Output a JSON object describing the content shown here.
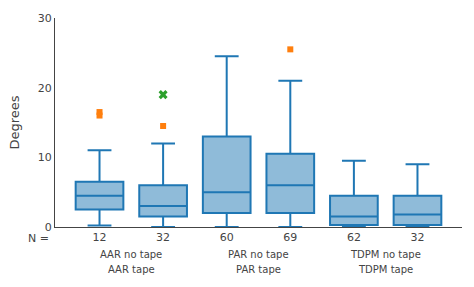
{
  "chart_data": {
    "type": "box",
    "ylabel": "Degrees",
    "ylim": [
      0,
      30
    ],
    "yticks": [
      0,
      10,
      20,
      30
    ],
    "grid": false,
    "categories": [
      "12",
      "32",
      "60",
      "69",
      "62",
      "32"
    ],
    "annotations": [
      {
        "text": "N ="
      }
    ],
    "group_labels": [
      [
        "AAR no tape",
        "AAR tape"
      ],
      [
        "PAR no tape",
        "PAR tape"
      ],
      [
        "TDPM no tape",
        "TDPM tape"
      ]
    ],
    "boxes": [
      {
        "q1": 2.5,
        "median": 4.5,
        "q3": 6.5,
        "whisker_low": 0.2,
        "whisker_high": 11.0
      },
      {
        "q1": 1.5,
        "median": 3.0,
        "q3": 6.0,
        "whisker_low": 0.0,
        "whisker_high": 12.0
      },
      {
        "q1": 2.0,
        "median": 5.0,
        "q3": 13.0,
        "whisker_low": 0.0,
        "whisker_high": 24.5
      },
      {
        "q1": 2.0,
        "median": 6.0,
        "q3": 10.5,
        "whisker_low": 0.0,
        "whisker_high": 21.0
      },
      {
        "q1": 0.3,
        "median": 1.5,
        "q3": 4.5,
        "whisker_low": 0.0,
        "whisker_high": 9.5
      },
      {
        "q1": 0.3,
        "median": 1.8,
        "q3": 4.5,
        "whisker_low": 0.0,
        "whisker_high": 9.0
      }
    ],
    "outliers": [
      {
        "marker": "square",
        "values": [
          [
            16.0,
            16.5
          ],
          [
            14.5
          ],
          [],
          [
            25.5
          ],
          [],
          []
        ]
      },
      {
        "marker": "x",
        "values": [
          [],
          [
            19.0
          ],
          [],
          [],
          [],
          []
        ]
      }
    ]
  }
}
